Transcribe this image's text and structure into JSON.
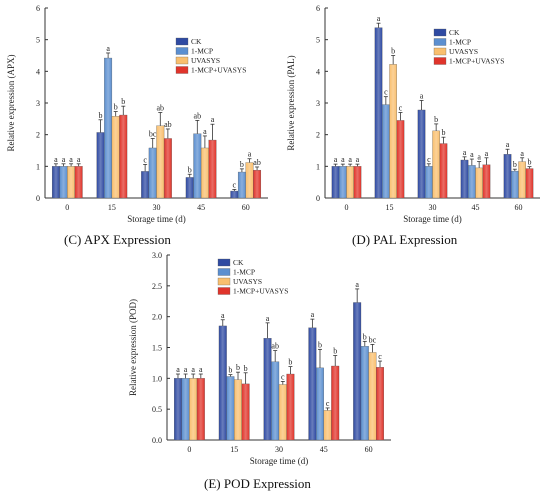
{
  "colors": {
    "CK": "#2f4aa2",
    "1-MCP": "#5b8fd0",
    "UVASYS": "#f9bf6e",
    "1-MCP+UVASYS": "#e0342b"
  },
  "chart_data": [
    {
      "type": "bar",
      "caption": "(C) APX Expression",
      "xlabel": "Storage time (d)",
      "ylabel": "Relative expression (APX)",
      "ylim": [
        0,
        6
      ],
      "yticks": [
        "0",
        "1",
        "2",
        "3",
        "4",
        "5",
        "6"
      ],
      "legend_position": "top-right",
      "categories": [
        "0",
        "15",
        "30",
        "45",
        "60"
      ],
      "series": [
        {
          "name": "CK",
          "values": [
            1.0,
            2.07,
            0.84,
            0.65,
            0.22
          ],
          "errors": [
            0.08,
            0.4,
            0.22,
            0.1,
            0.05
          ],
          "letters": [
            "a",
            "b",
            "c",
            "b",
            "c"
          ]
        },
        {
          "name": "1-MCP",
          "values": [
            1.0,
            4.42,
            1.58,
            2.03,
            0.82
          ],
          "errors": [
            0.08,
            0.16,
            0.3,
            0.42,
            0.1
          ],
          "letters": [
            "a",
            "a",
            "bc",
            "ab",
            "b"
          ]
        },
        {
          "name": "UVASYS",
          "values": [
            1.0,
            2.58,
            2.28,
            1.58,
            1.12
          ],
          "errors": [
            0.08,
            0.15,
            0.42,
            0.38,
            0.12
          ],
          "letters": [
            "a",
            "b",
            "ab",
            "a",
            "a"
          ]
        },
        {
          "name": "1-MCP+UVASYS",
          "values": [
            1.0,
            2.62,
            1.88,
            1.83,
            0.88
          ],
          "errors": [
            0.08,
            0.28,
            0.3,
            0.5,
            0.1
          ],
          "letters": [
            "a",
            "b",
            "ab",
            "a",
            "ab"
          ]
        }
      ]
    },
    {
      "type": "bar",
      "caption": "(D) PAL Expression",
      "xlabel": "Storage time (d)",
      "ylabel": "Relative expression (PAL)",
      "ylim": [
        0,
        6
      ],
      "yticks": [
        "0",
        "1",
        "2",
        "3",
        "4",
        "5",
        "6"
      ],
      "legend_position": "top-right",
      "categories": [
        "0",
        "15",
        "30",
        "45",
        "60"
      ],
      "series": [
        {
          "name": "CK",
          "values": [
            1.0,
            5.38,
            2.78,
            1.2,
            1.38
          ],
          "errors": [
            0.07,
            0.14,
            0.3,
            0.1,
            0.16
          ],
          "letters": [
            "a",
            "a",
            "a",
            "a",
            "a"
          ]
        },
        {
          "name": "1-MCP",
          "values": [
            1.0,
            2.95,
            1.0,
            1.03,
            0.85
          ],
          "errors": [
            0.07,
            0.25,
            0.08,
            0.2,
            0.06
          ],
          "letters": [
            "a",
            "c",
            "c",
            "a",
            "b"
          ]
        },
        {
          "name": "UVASYS",
          "values": [
            1.0,
            4.22,
            2.12,
            0.95,
            1.15
          ],
          "errors": [
            0.07,
            0.28,
            0.22,
            0.2,
            0.12
          ],
          "letters": [
            "a",
            "b",
            "b",
            "a",
            "a"
          ]
        },
        {
          "name": "1-MCP+UVASYS",
          "values": [
            1.0,
            2.45,
            1.72,
            1.05,
            0.93
          ],
          "errors": [
            0.07,
            0.25,
            0.2,
            0.22,
            0.06
          ],
          "letters": [
            "a",
            "c",
            "b",
            "a",
            "b"
          ]
        }
      ]
    },
    {
      "type": "bar",
      "caption": "(E) POD Expression",
      "xlabel": "Storage time (d)",
      "ylabel": "Relative expression (POD)",
      "ylim": [
        0,
        3.0
      ],
      "yticks": [
        "0.0",
        "0.5",
        "1.0",
        "1.5",
        "2.0",
        "2.5",
        "3.0"
      ],
      "legend_position": "top-left",
      "categories": [
        "0",
        "15",
        "30",
        "45",
        "60"
      ],
      "series": [
        {
          "name": "CK",
          "values": [
            1.0,
            1.85,
            1.65,
            1.82,
            2.23
          ],
          "errors": [
            0.07,
            0.1,
            0.25,
            0.14,
            0.22
          ],
          "letters": [
            "a",
            "a",
            "a",
            "a",
            "a"
          ]
        },
        {
          "name": "1-MCP",
          "values": [
            1.0,
            1.03,
            1.27,
            1.17,
            1.52
          ],
          "errors": [
            0.07,
            0.03,
            0.18,
            0.3,
            0.08
          ],
          "letters": [
            "a",
            "b",
            "ab",
            "b",
            "b"
          ]
        },
        {
          "name": "UVASYS",
          "values": [
            1.0,
            0.98,
            0.9,
            0.48,
            1.42
          ],
          "errors": [
            0.07,
            0.12,
            0.05,
            0.04,
            0.13
          ],
          "letters": [
            "a",
            "b",
            "c",
            "c",
            "bc"
          ]
        },
        {
          "name": "1-MCP+UVASYS",
          "values": [
            1.0,
            0.91,
            1.07,
            1.2,
            1.18
          ],
          "errors": [
            0.07,
            0.18,
            0.12,
            0.17,
            0.1
          ],
          "letters": [
            "a",
            "b",
            "b",
            "b",
            "c"
          ]
        }
      ]
    }
  ]
}
